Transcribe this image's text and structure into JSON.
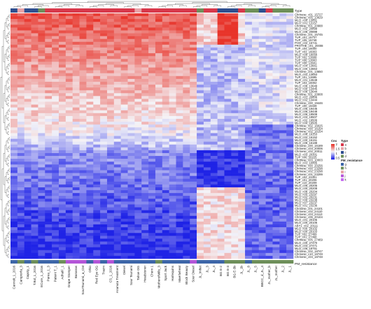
{
  "chart_data": {
    "type": "heatmap",
    "title": "",
    "top_annotation": {
      "label": "Type",
      "groups": [
        "a",
        "b",
        "c",
        "d"
      ],
      "colors": {
        "a": "#d8384b",
        "b": "#e7a3a8",
        "c": "#2f4f8f",
        "d": "#6e8f5a"
      },
      "values": [
        "c",
        "b",
        "c",
        "c",
        "d",
        "a",
        "a",
        "a",
        "a",
        "a",
        "a",
        "a",
        "a",
        "a",
        "a",
        "a",
        "a",
        "a",
        "b",
        "a",
        "a",
        "a",
        "a",
        "a",
        "a",
        "a",
        "a",
        "d",
        "a",
        "a",
        "c",
        "c",
        "c",
        "a",
        "d",
        "d",
        "c",
        "a",
        "d",
        "d",
        "d"
      ]
    },
    "bottom_annotation": {
      "label": "PM_resistance",
      "groups": [
        "g",
        "h",
        "i",
        "j",
        "k"
      ],
      "colors": {
        "g": "#3d66a8",
        "h": "#6e8f5a",
        "i": "#e7a3a8",
        "j": "#b455d8",
        "k": "#c56cf0"
      },
      "values": [
        "g",
        "h",
        "g",
        "h",
        "g",
        "g",
        "g",
        "h",
        "j",
        "j",
        "j",
        "g",
        "j",
        "g",
        "j",
        "g",
        "g",
        "g",
        "g",
        "g",
        "g",
        "h",
        "g",
        "g",
        "g",
        "g",
        "j",
        "g",
        "g",
        "g",
        "g",
        "h",
        "h",
        "h",
        "g",
        "h",
        "h",
        "h",
        "h",
        "h",
        "h"
      ]
    },
    "columns": [
      "Cannoli_1_2016",
      "Camptorfa_3",
      "Capoly_1",
      "T.Bol_1_2016",
      "ECure_1_2016",
      "Parea_1_3",
      "Patient T_1",
      "AdhalF_1",
      "Grape Stomper",
      "Bananas",
      "SourTsunami_a_CM",
      "Ohio",
      "Red Eye OG",
      "Trazm",
      "CS_1_2016",
      "Ananuta Treatment",
      "Diesel",
      "Sour Tsunami",
      "Tahoe OG",
      "Headstoner",
      "Chem 1",
      "MotherofMills_3",
      "Sport Jack",
      "Harlequins",
      "Maerlwheat",
      "Block Beauty",
      "Sour Diesel",
      "JL_lmfiet",
      "JL_3",
      "JL_4",
      "BG E-2",
      "BG E-3",
      "BG E-3b",
      "JL_1b",
      "JL_8",
      "JL_5",
      "BBCC_d_JL_4",
      "JL_mother_b",
      "JL_mother",
      "JL_2",
      "JL_1"
    ],
    "rows": [
      "Chrinese_c01_15727",
      "Chrinese_c05_13629",
      "MLO_c00_13001",
      "MLO_c01_13157",
      "Chrinese_c01_20988",
      "MLO_c02_20899",
      "MLO_c08_20898",
      "Chrinese_c01_15745",
      "TUP_c01_15747",
      "TUP_c05_15748",
      "PHO_c02_15741",
      "PROTHE_c01_20008",
      "TUP_c04_16000",
      "TUP_c03_16003",
      "MLO_c09_16056",
      "TUP_c02_13608",
      "TUP_c06_13663",
      "TUP_c08_13641",
      "MLO_c04_13661",
      "MLO_c00_13863",
      "Chrinese_c01_13650",
      "MLO_c02_13653",
      "TUP_c01_13695",
      "MLO_c01_13648",
      "TUP_c03_16002",
      "MLO_c08_13649",
      "MLO_c00_13445",
      "MLO_c08_13644",
      "Chrinese_c01_20908",
      "MLO_c01_20806",
      "MLO_c02_13444",
      "Chrinese_c00_19446",
      "TUP_c00_19449",
      "MLO_c05_19445",
      "MLO_c06_19448",
      "MLO_c06_19508",
      "MLO_c03_19507",
      "MLO_c02_19506",
      "MLO_c00_19505",
      "Chrinese_c02_16025",
      "Chrinese_c00_16154",
      "Chrinese_c02_16154",
      "MLO_c06_16153",
      "MLO_c02_16152",
      "MLO_c00_16151",
      "MLO_c08_16188",
      "Chrinese_c00_16189",
      "Chrinese_c03_20006",
      "Chrinese_c02_20011",
      "MLO_c03_20301",
      "TUP_c06_20225",
      "Chrinese_c03_10003",
      "MLO_c01_10005",
      "Chrinese_c00_20256",
      "Chrinese_c00_23298",
      "Chrinese_c02_23298",
      "Chrinese_c01_23299",
      "TUP_c02_23301",
      "TUP_c01_20206",
      "TUP_c10_20209",
      "MLO_c06_20205",
      "MLO_c00_20208",
      "MLO_c08_20204",
      "MLO_c05_23297",
      "MLO_c02_20231",
      "MLO_c00_23238",
      "MLO_c07_23237",
      "MLO_c01_23236",
      "Chrinese_c01_24101",
      "Chrinese_c02_24110",
      "Chrinese_c03_24113",
      "Chrinese_c06_20104",
      "MLO_c01_20105",
      "MLO_c00_20106",
      "ABY1_c02_20111",
      "MLO_c00_20102",
      "MLO_c00_20103",
      "TUP_c02_27469",
      "TUP_c01_27468",
      "Chrinese_c05_27469",
      "MLO_c00_27470",
      "MLO_c03_27471",
      "MLO_c06_18751",
      "Chrinese_c02_18747",
      "Chrinese_c10_18749",
      "Chrinese_c04_18748"
    ],
    "color_scale": {
      "label": "Cex",
      "ticks": [
        "0.5",
        "1",
        "1.5",
        "2"
      ],
      "range": [
        0.5,
        2
      ],
      "low": "#1f23e6",
      "mid": "#f4f4f8",
      "high": "#e8342a"
    },
    "legend_placement": "right"
  },
  "labels": {
    "type_title": "Type",
    "pm_title": "PM_resistance",
    "legend_cex_title": "Cex",
    "legend_type_title": "Type",
    "legend_pm_title": "PM_resistance"
  }
}
